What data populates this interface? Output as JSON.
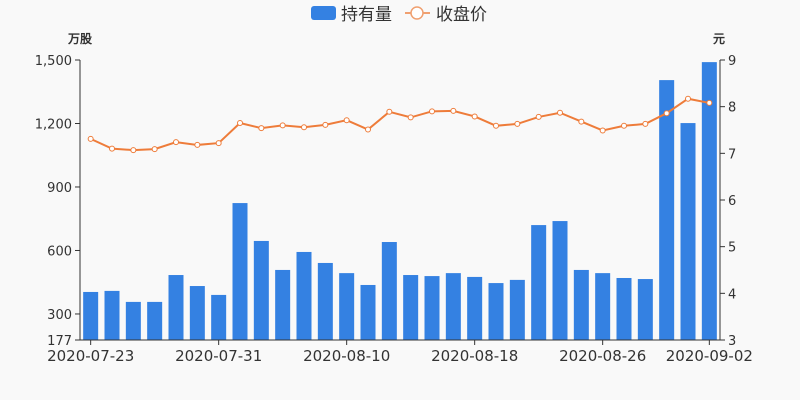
{
  "chart_data": {
    "type": "bar+line",
    "legend": {
      "placement": "top-center"
    },
    "left_axis": {
      "unit": "万股",
      "ylim": [
        177,
        1500
      ],
      "ticks": [
        "177",
        "300",
        "600",
        "900",
        "1,200",
        "1,500"
      ],
      "tick_values": [
        177,
        300,
        600,
        900,
        1200,
        1500
      ]
    },
    "right_axis": {
      "unit": "元",
      "ylim": [
        3,
        9
      ],
      "ticks": [
        "3",
        "4",
        "5",
        "6",
        "7",
        "8",
        "9"
      ],
      "tick_values": [
        3,
        4,
        5,
        6,
        7,
        8,
        9
      ]
    },
    "x": [
      "2020-07-23",
      "2020-07-24",
      "2020-07-27",
      "2020-07-28",
      "2020-07-29",
      "2020-07-30",
      "2020-07-31",
      "2020-08-03",
      "2020-08-04",
      "2020-08-05",
      "2020-08-06",
      "2020-08-07",
      "2020-08-10",
      "2020-08-11",
      "2020-08-12",
      "2020-08-13",
      "2020-08-14",
      "2020-08-17",
      "2020-08-18",
      "2020-08-19",
      "2020-08-20",
      "2020-08-21",
      "2020-08-24",
      "2020-08-25",
      "2020-08-26",
      "2020-08-27",
      "2020-08-28",
      "2020-08-31",
      "2020-09-01",
      "2020-09-02"
    ],
    "x_tick_labels": [
      "2020-07-23",
      "2020-07-31",
      "2020-08-10",
      "2020-08-18",
      "2020-08-26",
      "2020-09-02"
    ],
    "x_tick_indices": [
      0,
      6,
      12,
      18,
      24,
      29
    ],
    "series": [
      {
        "name": "持有量",
        "type": "bar",
        "axis": "left",
        "color": "#3481e2",
        "values": [
          404,
          409,
          357,
          357,
          484,
          432,
          390,
          824,
          645,
          508,
          593,
          541,
          493,
          437,
          640,
          484,
          479,
          493,
          475,
          446,
          461,
          720,
          739,
          508,
          493,
          470,
          465,
          1405,
          1202,
          1490
        ]
      },
      {
        "name": "收盘价",
        "type": "line",
        "axis": "right",
        "color": "#ee7c3a",
        "values": [
          7.31,
          7.1,
          7.07,
          7.09,
          7.24,
          7.18,
          7.22,
          7.65,
          7.54,
          7.6,
          7.56,
          7.61,
          7.71,
          7.51,
          7.89,
          7.77,
          7.9,
          7.91,
          7.79,
          7.59,
          7.63,
          7.78,
          7.87,
          7.68,
          7.49,
          7.59,
          7.63,
          7.86,
          8.17,
          8.08
        ]
      }
    ]
  }
}
